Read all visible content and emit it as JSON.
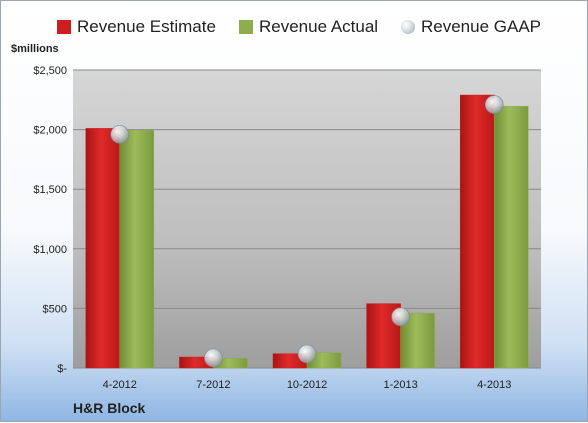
{
  "legend": {
    "estimate": "Revenue Estimate",
    "actual": "Revenue Actual",
    "gaap": "Revenue GAAP"
  },
  "unit_label": "$millions",
  "company": "H&R Block",
  "colors": {
    "estimate": "#cc1f1f",
    "actual": "#8ead4e",
    "gaap": "#c0c6cc"
  },
  "chart_data": {
    "type": "bar",
    "categories": [
      "4-2012",
      "7-2012",
      "10-2012",
      "1-2013",
      "4-2013"
    ],
    "series": [
      {
        "name": "Revenue Estimate",
        "values": [
          2010,
          92,
          120,
          540,
          2290
        ]
      },
      {
        "name": "Revenue Actual",
        "values": [
          1995,
          82,
          128,
          460,
          2195
        ]
      },
      {
        "name": "Revenue GAAP",
        "values": [
          1960,
          85,
          118,
          430,
          2210
        ]
      }
    ],
    "yticks": [
      "$-",
      "$500",
      "$1,000",
      "$1,500",
      "$2,000",
      "$2,500"
    ],
    "ylim": [
      0,
      2500
    ],
    "grid": true,
    "legend_position": "top"
  }
}
